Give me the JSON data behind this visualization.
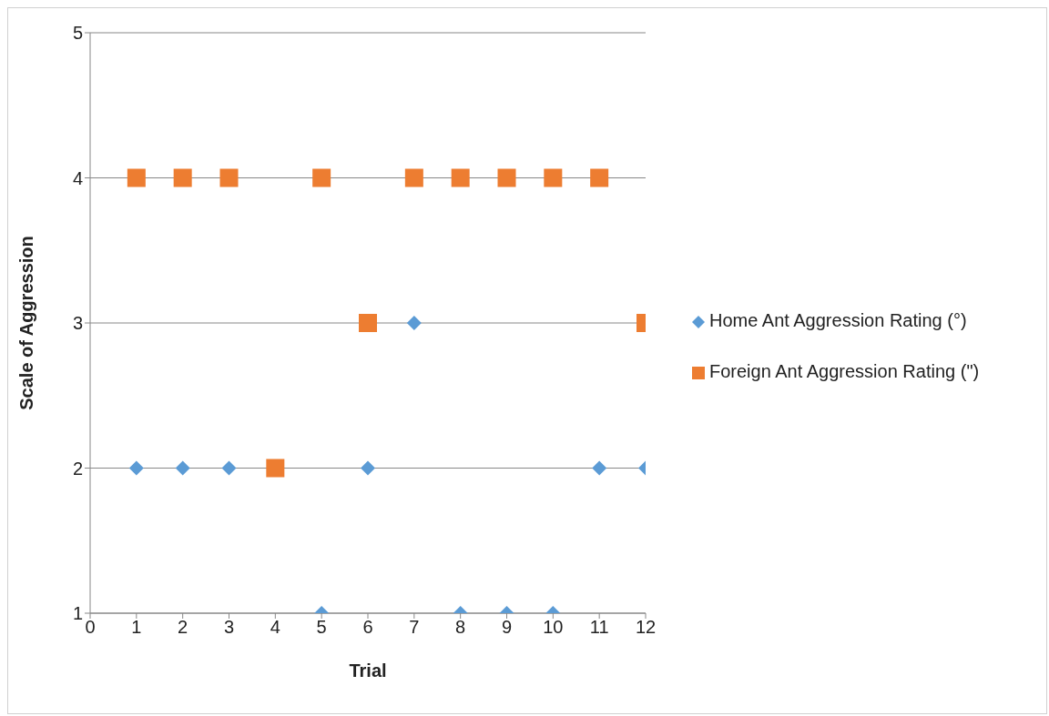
{
  "chart_data": {
    "type": "scatter",
    "xlabel": "Trial",
    "ylabel": "Scale of Aggression",
    "x": [
      1,
      2,
      3,
      4,
      5,
      6,
      7,
      8,
      9,
      10,
      11,
      12
    ],
    "series": [
      {
        "name": "Home Ant Aggression Rating (°)",
        "color": "#5b9bd5",
        "marker": "diamond",
        "values": [
          2,
          2,
          2,
          null,
          1,
          2,
          3,
          1,
          1,
          1,
          2,
          2
        ]
      },
      {
        "name": "Foreign Ant Aggression Rating (\")",
        "color": "#ed7d31",
        "marker": "square",
        "values": [
          4,
          4,
          4,
          2,
          4,
          3,
          4,
          4,
          4,
          4,
          4,
          3
        ]
      }
    ],
    "xlim": [
      0,
      12
    ],
    "xticks": [
      0,
      1,
      2,
      3,
      4,
      5,
      6,
      7,
      8,
      9,
      10,
      11,
      12
    ],
    "ylim": [
      1,
      5
    ],
    "yticks": [
      1,
      2,
      3,
      4,
      5
    ],
    "grid": "y",
    "legend": "right"
  }
}
